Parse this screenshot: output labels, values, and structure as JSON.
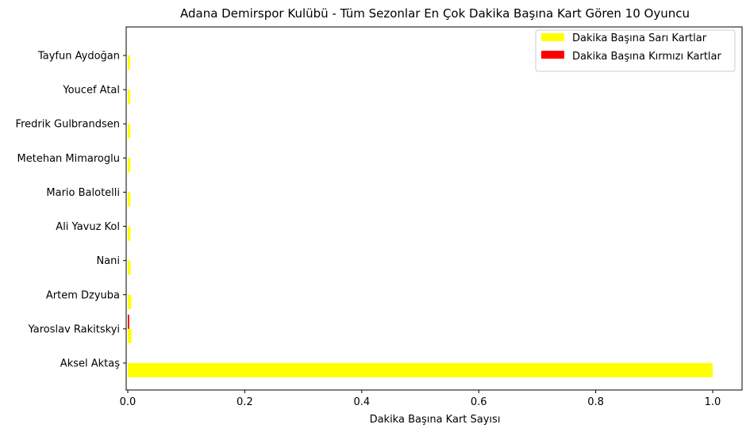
{
  "chart_data": {
    "type": "bar",
    "orientation": "horizontal",
    "grouped": true,
    "title": "Adana Demirspor Kulübü - Tüm Sezonlar En Çok Dakika Başına Kart Gören 10 Oyuncu",
    "xlabel": "Dakika Başına Kart Sayısı",
    "ylabel": "",
    "xlim": [
      0,
      1.05
    ],
    "xticks": [
      "0.0",
      "0.2",
      "0.4",
      "0.6",
      "0.8",
      "1.0"
    ],
    "grid": false,
    "legend_position": "top-right",
    "categories": [
      "Aksel Aktaş",
      "Yaroslav Rakitskyi",
      "Artem Dzyuba",
      "Nani",
      "Ali Yavuz Kol",
      "Mario Balotelli",
      "Metehan Mimaroglu",
      "Fredrik Gulbrandsen",
      "Youcef Atal",
      "Tayfun Aydoğan"
    ],
    "series": [
      {
        "name": "Dakika Başına Sarı Kartlar",
        "color": "#ffff00",
        "values": [
          1.0,
          0.0063,
          0.0059,
          0.0048,
          0.0046,
          0.0045,
          0.0044,
          0.0043,
          0.0042,
          0.0041
        ]
      },
      {
        "name": "Dakika Başına Kırmızı Kartlar",
        "color": "#ff0000",
        "values": [
          0,
          0.0025,
          0,
          0,
          0,
          0,
          0,
          0,
          0,
          0
        ]
      }
    ]
  }
}
